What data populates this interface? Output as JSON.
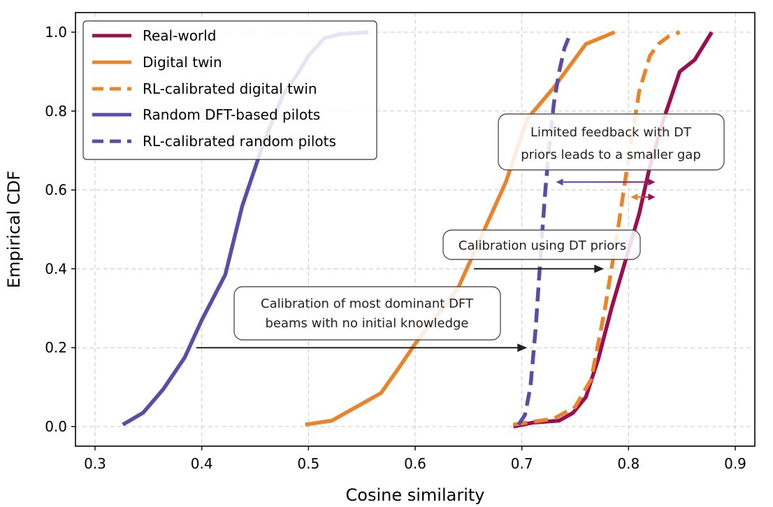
{
  "chart_data": {
    "type": "line",
    "xlabel": "Cosine similarity",
    "ylabel": "Empirical CDF",
    "xlim": [
      0.3,
      0.9
    ],
    "ylim": [
      0.0,
      1.0
    ],
    "x_ticks": [
      "0.3",
      "0.4",
      "0.5",
      "0.6",
      "0.7",
      "0.8",
      "0.9"
    ],
    "y_ticks": [
      "0.0",
      "0.2",
      "0.4",
      "0.6",
      "0.8",
      "1.0"
    ],
    "grid": true,
    "legend_position": "top-left",
    "series": [
      {
        "name": "Real-world",
        "color": "#9b0e4f",
        "style": "solid",
        "x": [
          0.692,
          0.71,
          0.735,
          0.748,
          0.76,
          0.772,
          0.784,
          0.797,
          0.81,
          0.82,
          0.833,
          0.848,
          0.862,
          0.878
        ],
        "y": [
          0.0,
          0.01,
          0.015,
          0.035,
          0.075,
          0.175,
          0.3,
          0.42,
          0.54,
          0.66,
          0.78,
          0.9,
          0.93,
          1.0
        ]
      },
      {
        "name": "Digital twin",
        "color": "#e8842a",
        "style": "solid",
        "x": [
          0.497,
          0.522,
          0.545,
          0.568,
          0.585,
          0.6,
          0.62,
          0.64,
          0.66,
          0.685,
          0.705,
          0.73,
          0.76,
          0.787
        ],
        "y": [
          0.005,
          0.015,
          0.05,
          0.085,
          0.15,
          0.21,
          0.28,
          0.35,
          0.47,
          0.62,
          0.78,
          0.86,
          0.97,
          1.0
        ]
      },
      {
        "name": "RL-calibrated digital twin",
        "color": "#e8842a",
        "style": "dashed",
        "x": [
          0.692,
          0.73,
          0.75,
          0.765,
          0.778,
          0.79,
          0.8,
          0.81,
          0.82,
          0.828,
          0.838,
          0.848
        ],
        "y": [
          0.005,
          0.02,
          0.05,
          0.12,
          0.3,
          0.5,
          0.68,
          0.85,
          0.94,
          0.97,
          0.99,
          1.0
        ]
      },
      {
        "name": "Random DFT-based pilots",
        "color": "#5b4da6",
        "style": "solid",
        "x": [
          0.326,
          0.345,
          0.364,
          0.384,
          0.4,
          0.422,
          0.438,
          0.458,
          0.476,
          0.49,
          0.5,
          0.515,
          0.53,
          0.556
        ],
        "y": [
          0.005,
          0.035,
          0.095,
          0.175,
          0.27,
          0.385,
          0.56,
          0.72,
          0.84,
          0.895,
          0.94,
          0.985,
          0.995,
          1.0
        ]
      },
      {
        "name": "RL-calibrated random pilots",
        "color": "#5b4da6",
        "style": "dashed",
        "x": [
          0.697,
          0.703,
          0.708,
          0.713,
          0.718,
          0.722,
          0.726,
          0.73,
          0.735,
          0.74,
          0.746
        ],
        "y": [
          0.005,
          0.03,
          0.1,
          0.25,
          0.45,
          0.6,
          0.72,
          0.82,
          0.9,
          0.96,
          1.0
        ]
      }
    ],
    "annotations": [
      {
        "lines": [
          "Calibration of most dominant DFT",
          "beams with no initial knowledge"
        ],
        "arrow_from": [
          0.395,
          0.2
        ],
        "arrow_to": [
          0.705,
          0.2
        ],
        "color": "#222222"
      },
      {
        "lines": [
          "Calibration using DT priors"
        ],
        "arrow_from": [
          0.655,
          0.4
        ],
        "arrow_to": [
          0.777,
          0.4
        ],
        "color": "#222222"
      },
      {
        "lines": [
          "Limited feedback with DT",
          "priors leads to a smaller gap"
        ]
      },
      {
        "arrow_from": [
          0.732,
          0.62
        ],
        "arrow_to": [
          0.825,
          0.62
        ],
        "color_from": "#5b4da6",
        "color_to": "#9b0e4f"
      },
      {
        "arrow_from": [
          0.802,
          0.582
        ],
        "arrow_to": [
          0.825,
          0.582
        ],
        "color_from": "#e8842a",
        "color_to": "#9b0e4f"
      }
    ]
  }
}
